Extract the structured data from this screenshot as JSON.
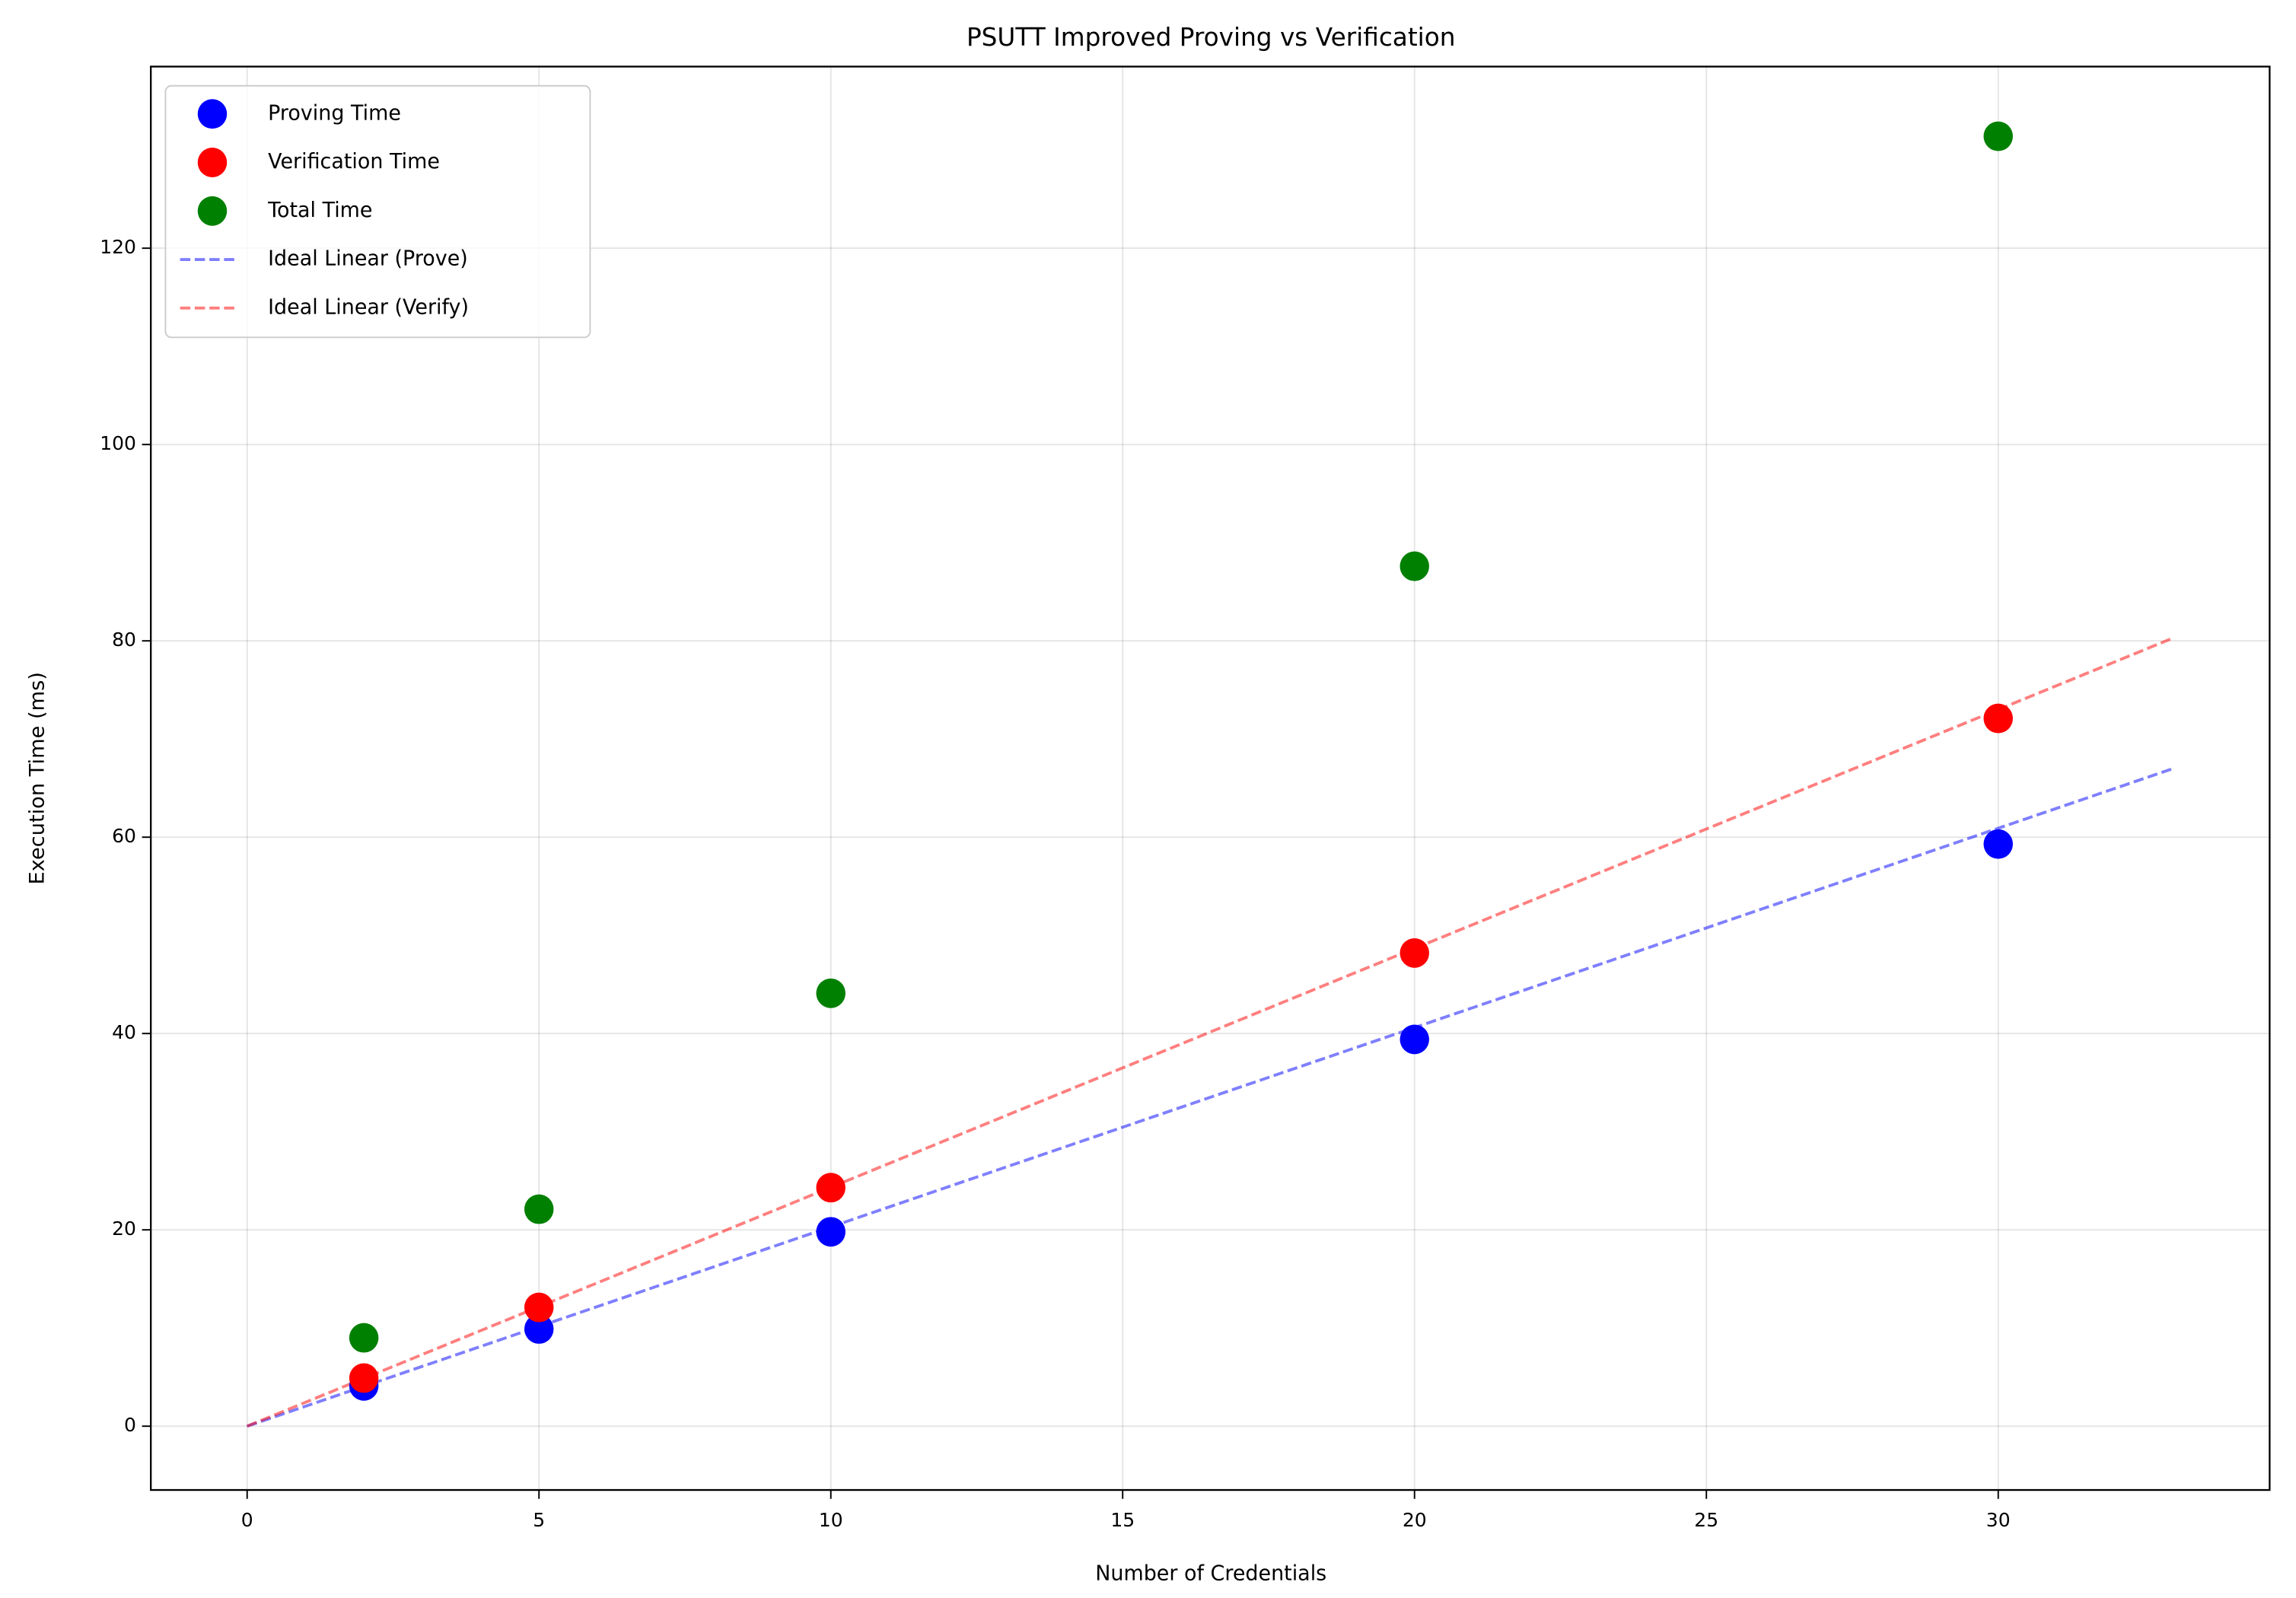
{
  "chart_data": {
    "type": "scatter",
    "title": "PSUTT Improved Proving vs Verification",
    "xlabel": "Number of Credentials",
    "ylabel": "Execution Time (ms)",
    "xlim": [
      -1.65,
      34.65
    ],
    "ylim": [
      -6.5,
      138.5
    ],
    "xticks": [
      0,
      5,
      10,
      15,
      20,
      25,
      30
    ],
    "yticks": [
      0,
      20,
      40,
      60,
      80,
      100,
      120
    ],
    "grid": true,
    "legend": "upper left",
    "series": [
      {
        "name": "Proving Time",
        "color": "#0000ff",
        "kind": "scatter",
        "x": [
          2,
          5,
          10,
          20,
          30
        ],
        "values": [
          4.1,
          9.9,
          19.8,
          39.4,
          59.3
        ]
      },
      {
        "name": "Verification Time",
        "color": "#ff0000",
        "kind": "scatter",
        "x": [
          2,
          5,
          10,
          20,
          30
        ],
        "values": [
          4.9,
          12.1,
          24.3,
          48.2,
          72.1
        ]
      },
      {
        "name": "Total Time",
        "color": "#008000",
        "kind": "scatter",
        "x": [
          2,
          5,
          10,
          20,
          30
        ],
        "values": [
          9.0,
          22.1,
          44.1,
          87.6,
          131.4
        ]
      },
      {
        "name": "Ideal Linear (Prove)",
        "color": "#0000ff",
        "kind": "dashed-line",
        "x": [
          0,
          33
        ],
        "values": [
          0,
          67
        ]
      },
      {
        "name": "Ideal Linear (Verify)",
        "color": "#ff0000",
        "kind": "dashed-line",
        "x": [
          0,
          33
        ],
        "values": [
          0,
          80.3
        ]
      }
    ]
  }
}
